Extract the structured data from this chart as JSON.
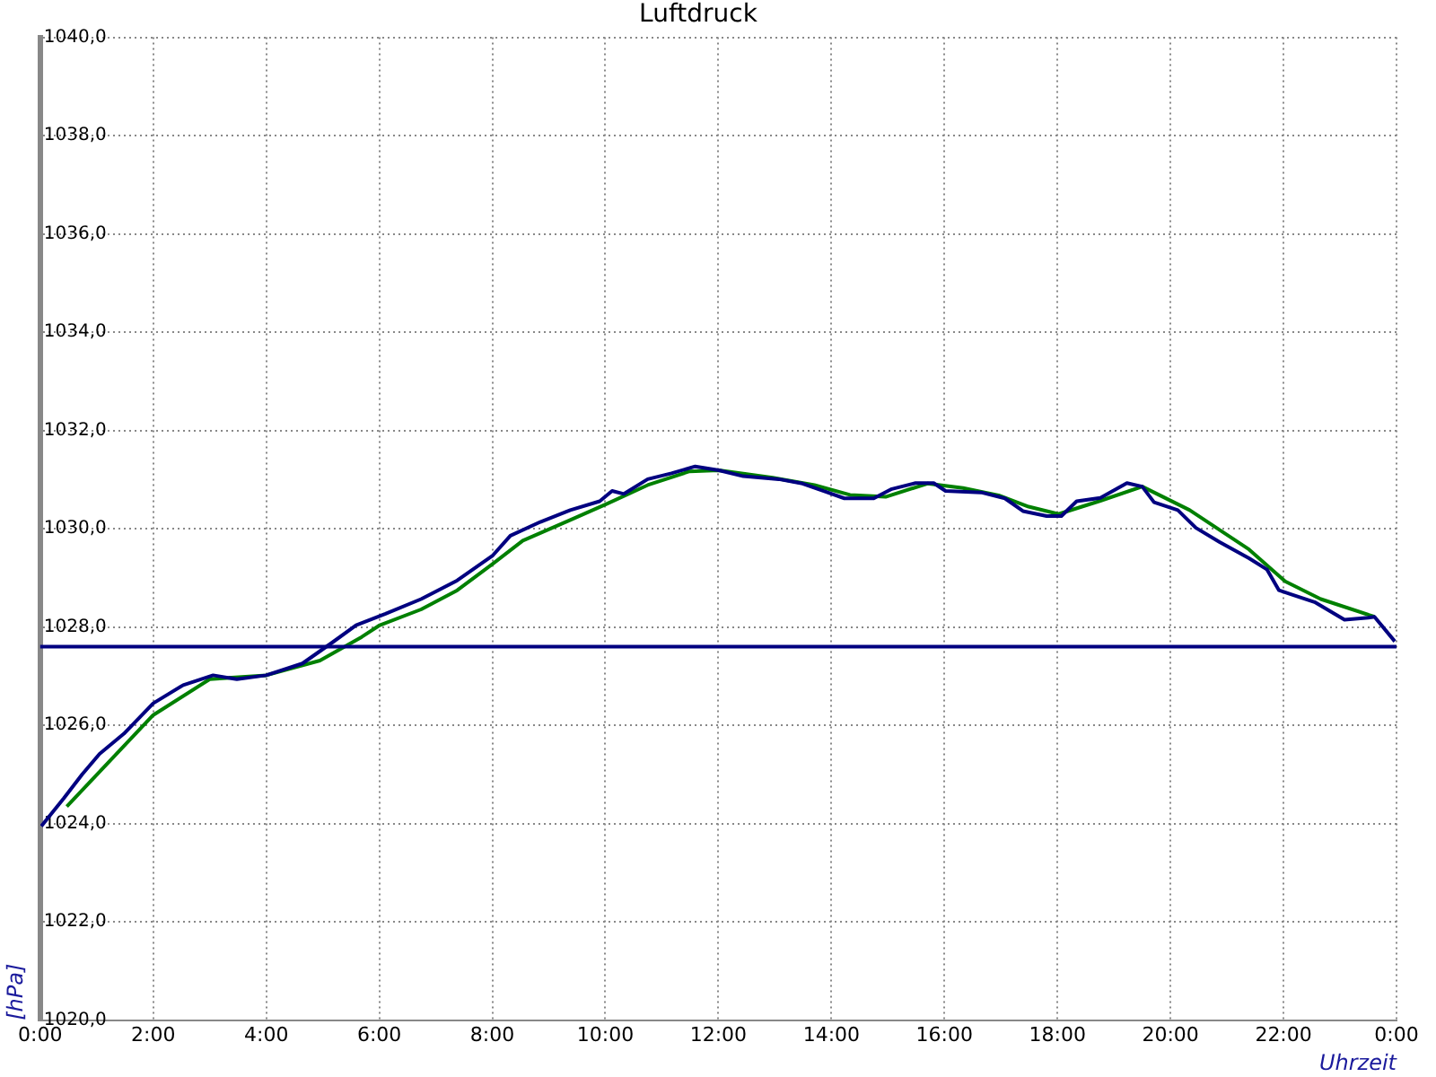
{
  "chart_data": {
    "type": "line",
    "title": "Luftdruck",
    "xlabel": "Uhrzeit",
    "ylabel": "[hPa]",
    "xlim": [
      0,
      24
    ],
    "xticks": [
      {
        "value": 0,
        "label": "0:00"
      },
      {
        "value": 2,
        "label": "2:00"
      },
      {
        "value": 4,
        "label": "4:00"
      },
      {
        "value": 6,
        "label": "6:00"
      },
      {
        "value": 8,
        "label": "8:00"
      },
      {
        "value": 10,
        "label": "10:00"
      },
      {
        "value": 12,
        "label": "12:00"
      },
      {
        "value": 14,
        "label": "14:00"
      },
      {
        "value": 16,
        "label": "16:00"
      },
      {
        "value": 18,
        "label": "18:00"
      },
      {
        "value": 20,
        "label": "20:00"
      },
      {
        "value": 22,
        "label": "22:00"
      },
      {
        "value": 24,
        "label": "0:00"
      }
    ],
    "ylim": [
      1020,
      1040
    ],
    "yticks": [
      {
        "value": 1020,
        "label": "1020,0"
      },
      {
        "value": 1022,
        "label": "1022,0"
      },
      {
        "value": 1024,
        "label": "1024,0"
      },
      {
        "value": 1026,
        "label": "1026,0"
      },
      {
        "value": 1028,
        "label": "1028,0"
      },
      {
        "value": 1030,
        "label": "1030,0"
      },
      {
        "value": 1032,
        "label": "1032,0"
      },
      {
        "value": 1034,
        "label": "1034,0"
      },
      {
        "value": 1036,
        "label": "1036,0"
      },
      {
        "value": 1038,
        "label": "1038,0"
      },
      {
        "value": 1040,
        "label": "1040,0"
      }
    ],
    "grid": true,
    "legend": false,
    "marker": "none",
    "line_style": "solid",
    "ref_lines": [
      {
        "axis": "y",
        "value": 1027.6,
        "color": "#000080"
      }
    ],
    "series": [
      {
        "color": "#000080",
        "x": [
          0.02,
          0.42,
          0.74,
          1.05,
          1.48,
          2.0,
          2.53,
          3.06,
          3.48,
          4.0,
          4.64,
          5.16,
          5.59,
          6.11,
          6.74,
          7.38,
          8.01,
          8.32,
          8.85,
          9.38,
          9.9,
          10.12,
          10.33,
          10.75,
          11.17,
          11.59,
          12.01,
          12.44,
          13.07,
          13.49,
          13.91,
          14.23,
          14.75,
          15.07,
          15.49,
          15.81,
          16.02,
          16.65,
          17.07,
          17.39,
          17.81,
          18.07,
          18.34,
          18.76,
          19.23,
          19.5,
          19.71,
          20.13,
          20.45,
          20.87,
          21.39,
          21.71,
          21.92,
          22.13,
          22.55,
          23.08,
          23.5,
          23.61,
          23.97
        ],
        "values": [
          1023.95,
          1024.52,
          1025.0,
          1025.42,
          1025.83,
          1026.45,
          1026.82,
          1027.02,
          1026.94,
          1027.02,
          1027.26,
          1027.68,
          1028.04,
          1028.27,
          1028.57,
          1028.95,
          1029.46,
          1029.86,
          1030.14,
          1030.38,
          1030.56,
          1030.77,
          1030.71,
          1031.01,
          1031.13,
          1031.27,
          1031.19,
          1031.07,
          1031.01,
          1030.92,
          1030.75,
          1030.62,
          1030.62,
          1030.81,
          1030.93,
          1030.93,
          1030.77,
          1030.74,
          1030.62,
          1030.36,
          1030.26,
          1030.26,
          1030.56,
          1030.63,
          1030.93,
          1030.86,
          1030.54,
          1030.38,
          1030.02,
          1029.73,
          1029.4,
          1029.17,
          1028.75,
          1028.67,
          1028.51,
          1028.15,
          1028.19,
          1028.21,
          1027.71
        ]
      },
      {
        "color": "#008000",
        "x": [
          0.47,
          2.0,
          3.0,
          4.0,
          4.95,
          5.69,
          6.01,
          6.74,
          7.38,
          8.01,
          8.54,
          9.38,
          10.01,
          10.75,
          11.49,
          12.01,
          12.96,
          13.7,
          14.33,
          14.96,
          15.7,
          16.33,
          16.96,
          17.49,
          18.02,
          18.76,
          19.5,
          20.34,
          21.39,
          22.03,
          22.66,
          23.61
        ],
        "values": [
          1024.35,
          1026.21,
          1026.94,
          1027.02,
          1027.32,
          1027.8,
          1028.04,
          1028.36,
          1028.75,
          1029.29,
          1029.76,
          1030.18,
          1030.5,
          1030.89,
          1031.17,
          1031.19,
          1031.04,
          1030.89,
          1030.69,
          1030.65,
          1030.92,
          1030.83,
          1030.68,
          1030.45,
          1030.3,
          1030.57,
          1030.86,
          1030.38,
          1029.58,
          1028.93,
          1028.57,
          1028.21
        ]
      }
    ]
  }
}
